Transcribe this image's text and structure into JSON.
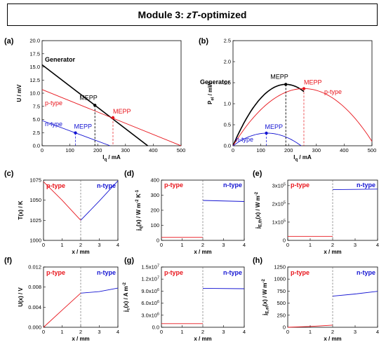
{
  "title": {
    "prefix": "Module 3:",
    "italic": "zT",
    "suffix": "-optimized"
  },
  "colors": {
    "p": "#e8141b",
    "n": "#1414d2",
    "gen": "#000000",
    "dash": "#6b6b6b"
  },
  "chart_data": [
    {
      "panel": "(a)",
      "type": "line",
      "xlabel": "I_q / mA",
      "ylabel": "U / mV",
      "xlim": [
        0,
        500
      ],
      "ylim": [
        0,
        20
      ],
      "xticks": [
        0,
        100,
        200,
        300,
        400,
        500
      ],
      "yticks": [
        0.0,
        2.5,
        5.0,
        7.5,
        10.0,
        12.5,
        15.0,
        17.5,
        20.0
      ],
      "ytick_labels": [
        "0.0",
        "2.5",
        "5.0",
        "7.5",
        "10.0",
        "12.5",
        "15.0",
        "17.5",
        "20.0"
      ],
      "series": [
        {
          "name": "Generator",
          "color": "gen",
          "x": [
            0,
            380
          ],
          "y": [
            15.4,
            0
          ]
        },
        {
          "name": "p-type",
          "color": "p",
          "x": [
            0,
            500
          ],
          "y": [
            10.7,
            0
          ]
        },
        {
          "name": "n-type",
          "color": "n",
          "x": [
            0,
            245
          ],
          "y": [
            4.8,
            0
          ]
        }
      ],
      "mepp": [
        {
          "label": "MEPP",
          "color": "gen",
          "x": 190,
          "y": 7.7
        },
        {
          "label": "MEPP",
          "color": "p",
          "x": 255,
          "y": 5.35
        },
        {
          "label": "MEPP",
          "color": "n",
          "x": 120,
          "y": 2.45
        }
      ]
    },
    {
      "panel": "(b)",
      "type": "line",
      "xlabel": "I_q / mA",
      "ylabel": "P_el / mW",
      "xlim": [
        0,
        500
      ],
      "ylim": [
        0,
        2.5
      ],
      "xticks": [
        0,
        100,
        200,
        300,
        400,
        500
      ],
      "yticks": [
        0.0,
        0.5,
        1.0,
        1.5,
        2.0,
        2.5
      ],
      "ytick_labels": [
        "0.0",
        "0.5",
        "1.0",
        "1.5",
        "2.0",
        "2.5"
      ],
      "series": [
        {
          "name": "Generator",
          "color": "gen",
          "shape": "parabola",
          "xmax": 255,
          "ypeak": 1.46,
          "xpeak": 190,
          "xzero": 380
        },
        {
          "name": "p-type",
          "color": "p",
          "shape": "parabola",
          "xmax": 500,
          "ypeak": 1.36,
          "xpeak": 255,
          "xzero": 510
        },
        {
          "name": "n-type",
          "color": "n",
          "shape": "parabola",
          "xmax": 245,
          "ypeak": 0.3,
          "xpeak": 120,
          "xzero": 245
        }
      ],
      "mepp": [
        {
          "label": "MEPP",
          "color": "gen",
          "x": 190,
          "y": 1.46
        },
        {
          "label": "MEPP",
          "color": "p",
          "x": 255,
          "y": 1.36
        },
        {
          "label": "MEPP",
          "color": "n",
          "x": 120,
          "y": 0.3
        }
      ]
    },
    {
      "panel": "(c)",
      "type": "line",
      "xlabel": "x / mm",
      "ylabel": "T(x) / K",
      "xlim": [
        0,
        4
      ],
      "ylim": [
        1000,
        1075
      ],
      "xticks": [
        0,
        1,
        2,
        3,
        4
      ],
      "yticks": [
        1000,
        1025,
        1050,
        1075
      ],
      "ytick_labels": [
        "1000",
        "1025",
        "1050",
        "1075"
      ],
      "series": [
        {
          "name": "p-type",
          "color": "p",
          "x": [
            0,
            1,
            2
          ],
          "y": [
            1073,
            1050,
            1025
          ]
        },
        {
          "name": "n-type",
          "color": "n",
          "x": [
            2,
            3,
            4
          ],
          "y": [
            1025,
            1049,
            1074
          ]
        }
      ]
    },
    {
      "panel": "(d)",
      "type": "line",
      "xlabel": "x / mm",
      "ylabel": "j_q(x) / W m^-2 K^-1",
      "xlim": [
        0,
        4
      ],
      "ylim": [
        0,
        400
      ],
      "xticks": [
        0,
        1,
        2,
        3,
        4
      ],
      "yticks": [
        0,
        100,
        200,
        300,
        400
      ],
      "ytick_labels": [
        "0",
        "100",
        "200",
        "300",
        "400"
      ],
      "series": [
        {
          "name": "p-type",
          "color": "p",
          "x": [
            0,
            2
          ],
          "y": [
            20,
            20
          ]
        },
        {
          "name": "n-type",
          "color": "n",
          "x": [
            2,
            4
          ],
          "y": [
            265,
            258
          ]
        }
      ]
    },
    {
      "panel": "(e)",
      "type": "line",
      "xlabel": "x / mm",
      "ylabel": "j_E,th(x) / W m^-2",
      "xlim": [
        0,
        4
      ],
      "ylim": [
        0,
        3.3
      ],
      "xticks": [
        0,
        1,
        2,
        3,
        4
      ],
      "yticks": [
        0,
        1,
        2,
        3
      ],
      "ytick_labels": [
        "0",
        "1x10^5",
        "2x10^5",
        "3x10^5"
      ],
      "series": [
        {
          "name": "p-type",
          "color": "p",
          "x": [
            0,
            2
          ],
          "y": [
            0.22,
            0.22
          ]
        },
        {
          "name": "n-type",
          "color": "n",
          "x": [
            2,
            4
          ],
          "y": [
            2.78,
            2.81
          ]
        }
      ]
    },
    {
      "panel": "(f)",
      "type": "line",
      "xlabel": "x / mm",
      "ylabel": "U(x) / V",
      "xlim": [
        0,
        4
      ],
      "ylim": [
        0,
        0.012
      ],
      "xticks": [
        0,
        1,
        2,
        3,
        4
      ],
      "yticks": [
        0,
        0.004,
        0.008,
        0.012
      ],
      "ytick_labels": [
        "0.000",
        "0.004",
        "0.008",
        "0.012"
      ],
      "series": [
        {
          "name": "p-type",
          "color": "p",
          "x": [
            0,
            1,
            2
          ],
          "y": [
            0,
            0.0034,
            0.0068
          ]
        },
        {
          "name": "n-type",
          "color": "n",
          "x": [
            2,
            3,
            4
          ],
          "y": [
            0.0068,
            0.0071,
            0.0078
          ]
        }
      ]
    },
    {
      "panel": "(g)",
      "type": "line",
      "xlabel": "x / mm",
      "ylabel": "j_c(x) / A m^-2",
      "xlim": [
        0,
        4
      ],
      "ylim": [
        0,
        15
      ],
      "xticks": [
        0,
        1,
        2,
        3,
        4
      ],
      "yticks": [
        0,
        3,
        6,
        9,
        12,
        15
      ],
      "ytick_labels": [
        "0.0",
        "3.0x10^6",
        "6.0x10^6",
        "9.0x10^6",
        "1.2x10^7",
        "1.5x10^7"
      ],
      "series": [
        {
          "name": "p-type",
          "color": "p",
          "x": [
            0,
            2
          ],
          "y": [
            0.9,
            0.9
          ]
        },
        {
          "name": "n-type",
          "color": "n",
          "x": [
            2,
            4
          ],
          "y": [
            9.7,
            9.6
          ]
        }
      ]
    },
    {
      "panel": "(h)",
      "type": "line",
      "xlabel": "x / mm",
      "ylabel": "j_E,el(x) / W m^-2",
      "xlim": [
        0,
        4
      ],
      "ylim": [
        0,
        1250
      ],
      "xticks": [
        0,
        1,
        2,
        3,
        4
      ],
      "yticks": [
        0,
        250,
        500,
        750,
        1000,
        1250
      ],
      "ytick_labels": [
        "0",
        "250",
        "500",
        "750",
        "1000",
        "1250"
      ],
      "series": [
        {
          "name": "p-type",
          "color": "p",
          "x": [
            0,
            1,
            2
          ],
          "y": [
            0,
            18,
            45
          ]
        },
        {
          "name": "n-type",
          "color": "n",
          "x": [
            2,
            3,
            4
          ],
          "y": [
            645,
            690,
            745
          ]
        }
      ]
    }
  ],
  "legend_words": {
    "generator": "Generator",
    "p": "p-type",
    "n": "n-type"
  }
}
